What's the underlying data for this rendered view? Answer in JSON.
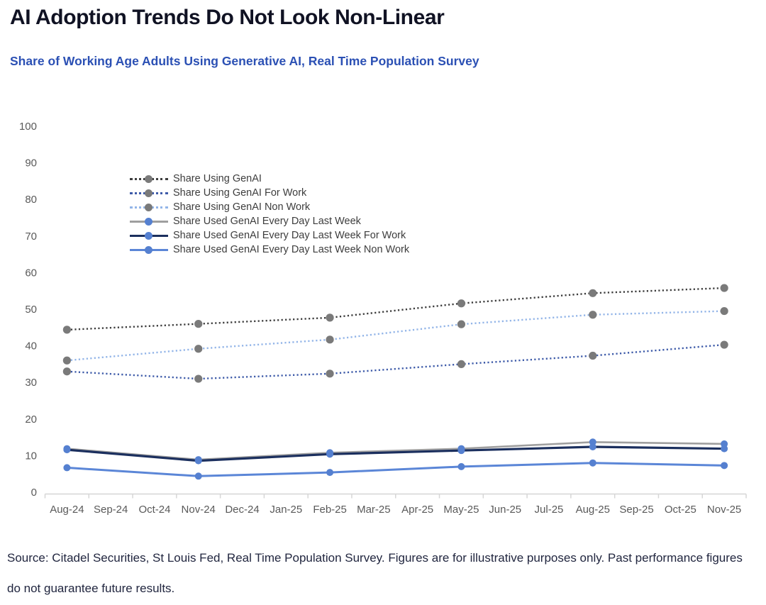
{
  "header": {
    "title": "AI Adoption Trends Do Not Look Non-Linear",
    "subtitle": "Share of Working Age Adults Using Generative AI, Real Time Population Survey"
  },
  "footer": {
    "text": "Source: Citadel Securities, St Louis Fed, Real Time Population Survey. Figures are for illustrative purposes only. Past performance figures do not guarantee future results."
  },
  "colors": {
    "title_text": "#101223",
    "subtitle_text": "#2b50b4",
    "footer_text": "#21263f",
    "axis_line": "#d6d6d6",
    "tick_label": "#595959",
    "legend_text": "#3d3d3d"
  },
  "chart_data": {
    "type": "line",
    "title": "",
    "xlabel": "",
    "ylabel": "",
    "ylim": [
      0,
      100
    ],
    "grid": false,
    "legend_position": "inside-top-left",
    "y_ticks": [
      0,
      10,
      20,
      30,
      40,
      50,
      60,
      70,
      80,
      90,
      100
    ],
    "x_categories": [
      "Aug-24",
      "Sep-24",
      "Oct-24",
      "Nov-24",
      "Dec-24",
      "Jan-25",
      "Feb-25",
      "Mar-25",
      "Apr-25",
      "May-25",
      "Jun-25",
      "Jul-25",
      "Aug-25",
      "Sep-25",
      "Oct-25",
      "Nov-25"
    ],
    "observation_months": [
      "Aug-24",
      "Nov-24",
      "Feb-25",
      "May-25",
      "Aug-25",
      "Nov-25"
    ],
    "observation_month_indices": [
      0,
      3,
      6,
      9,
      12,
      15
    ],
    "series": [
      {
        "name": "Share Using GenAI",
        "style": "dotted",
        "color": "#3d3d3d",
        "marker_color": "#7a7a7a",
        "values": [
          44.4,
          46.0,
          47.7,
          51.6,
          54.4,
          55.8
        ]
      },
      {
        "name": "Share Using GenAI For Work",
        "style": "dotted",
        "color": "#3e5ba9",
        "marker_color": "#7a7a7a",
        "values": [
          33.0,
          31.0,
          32.4,
          35.0,
          37.3,
          40.3
        ]
      },
      {
        "name": "Share Using GenAI Non Work",
        "style": "dotted",
        "color": "#93b5e8",
        "marker_color": "#7a7a7a",
        "values": [
          36.0,
          39.2,
          41.7,
          45.9,
          48.5,
          49.5
        ]
      },
      {
        "name": "Share Used GenAI Every Day Last Week",
        "style": "solid",
        "color": "#9f9f9f",
        "marker_color": "#5580d0",
        "values": [
          11.9,
          8.9,
          10.8,
          11.9,
          13.7,
          13.2
        ]
      },
      {
        "name": "Share Used GenAI Every Day Last Week For Work",
        "style": "solid",
        "color": "#1b2f5e",
        "marker_color": "#5580d0",
        "values": [
          11.6,
          8.6,
          10.4,
          11.4,
          12.4,
          11.9
        ]
      },
      {
        "name": "Share Used GenAI Every Day Last Week Non Work",
        "style": "solid",
        "color": "#5b86d7",
        "marker_color": "#5580d0",
        "values": [
          6.7,
          4.4,
          5.4,
          7.0,
          8.0,
          7.3
        ]
      }
    ]
  }
}
